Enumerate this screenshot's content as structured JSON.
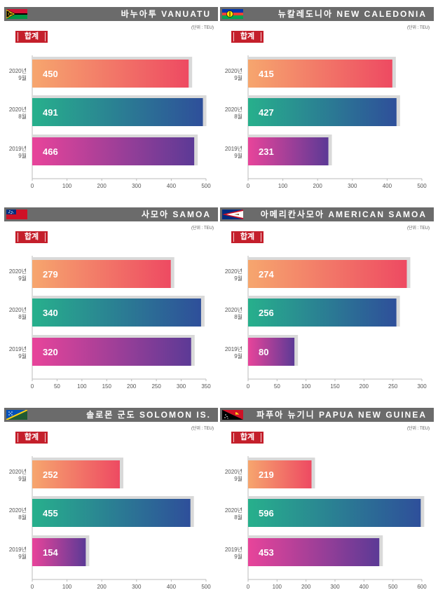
{
  "unit_label": "(단위 : TEU)",
  "total_label": "합계",
  "colors": {
    "header": "#6b6b6b",
    "badge": "#c41f2b",
    "bar_2020_9": [
      "#f6a66e",
      "#ee4a62"
    ],
    "bar_2020_8": [
      "#27b08c",
      "#2e4f9a"
    ],
    "bar_2019_9": [
      "#e8449a",
      "#5c3a96"
    ],
    "shadow": "#d9d9d9"
  },
  "panels": [
    {
      "title": "바누아투 VANUATU",
      "flag": "vanuatu"
    },
    {
      "title": "뉴칼레도니아 NEW CALEDONIA",
      "flag": "new-caledonia"
    },
    {
      "title": "사모아 SAMOA",
      "flag": "samoa"
    },
    {
      "title": "아메리칸사모아 AMERICAN SAMOA",
      "flag": "american-samoa"
    },
    {
      "title": "솔로몬 군도 SOLOMON IS.",
      "flag": "solomon-islands"
    },
    {
      "title": "파푸아 뉴기니 PAPUA NEW GUINEA",
      "flag": "papua-new-guinea"
    }
  ],
  "chart_data": [
    {
      "type": "bar",
      "orientation": "horizontal",
      "categories": [
        [
          "2020년",
          "9월"
        ],
        [
          "2020년",
          "8월"
        ],
        [
          "2019년",
          "9월"
        ]
      ],
      "values": [
        450,
        491,
        466
      ],
      "xlim": [
        0,
        500
      ],
      "xticks": [
        0,
        100,
        200,
        300,
        400,
        500
      ]
    },
    {
      "type": "bar",
      "orientation": "horizontal",
      "categories": [
        [
          "2020년",
          "9월"
        ],
        [
          "2020년",
          "8월"
        ],
        [
          "2019년",
          "9월"
        ]
      ],
      "values": [
        415,
        427,
        231
      ],
      "xlim": [
        0,
        500
      ],
      "xticks": [
        0,
        100,
        200,
        300,
        400,
        500
      ]
    },
    {
      "type": "bar",
      "orientation": "horizontal",
      "categories": [
        [
          "2020년",
          "9월"
        ],
        [
          "2020년",
          "8월"
        ],
        [
          "2019년",
          "9월"
        ]
      ],
      "values": [
        279,
        340,
        320
      ],
      "xlim": [
        0,
        350
      ],
      "xticks": [
        0,
        50,
        100,
        150,
        200,
        250,
        300,
        350
      ]
    },
    {
      "type": "bar",
      "orientation": "horizontal",
      "categories": [
        [
          "2020년",
          "9월"
        ],
        [
          "2020년",
          "8월"
        ],
        [
          "2019년",
          "9월"
        ]
      ],
      "values": [
        274,
        256,
        80
      ],
      "xlim": [
        0,
        300
      ],
      "xticks": [
        0,
        50,
        100,
        150,
        200,
        250,
        300
      ]
    },
    {
      "type": "bar",
      "orientation": "horizontal",
      "categories": [
        [
          "2020년",
          "9월"
        ],
        [
          "2020년",
          "8월"
        ],
        [
          "2019년",
          "9월"
        ]
      ],
      "values": [
        252,
        455,
        154
      ],
      "xlim": [
        0,
        500
      ],
      "xticks": [
        0,
        100,
        200,
        300,
        400,
        500
      ]
    },
    {
      "type": "bar",
      "orientation": "horizontal",
      "categories": [
        [
          "2020년",
          "9월"
        ],
        [
          "2020년",
          "8월"
        ],
        [
          "2019년",
          "9월"
        ]
      ],
      "values": [
        219,
        596,
        453
      ],
      "xlim": [
        0,
        600
      ],
      "xticks": [
        0,
        100,
        200,
        300,
        400,
        500,
        600
      ]
    }
  ]
}
